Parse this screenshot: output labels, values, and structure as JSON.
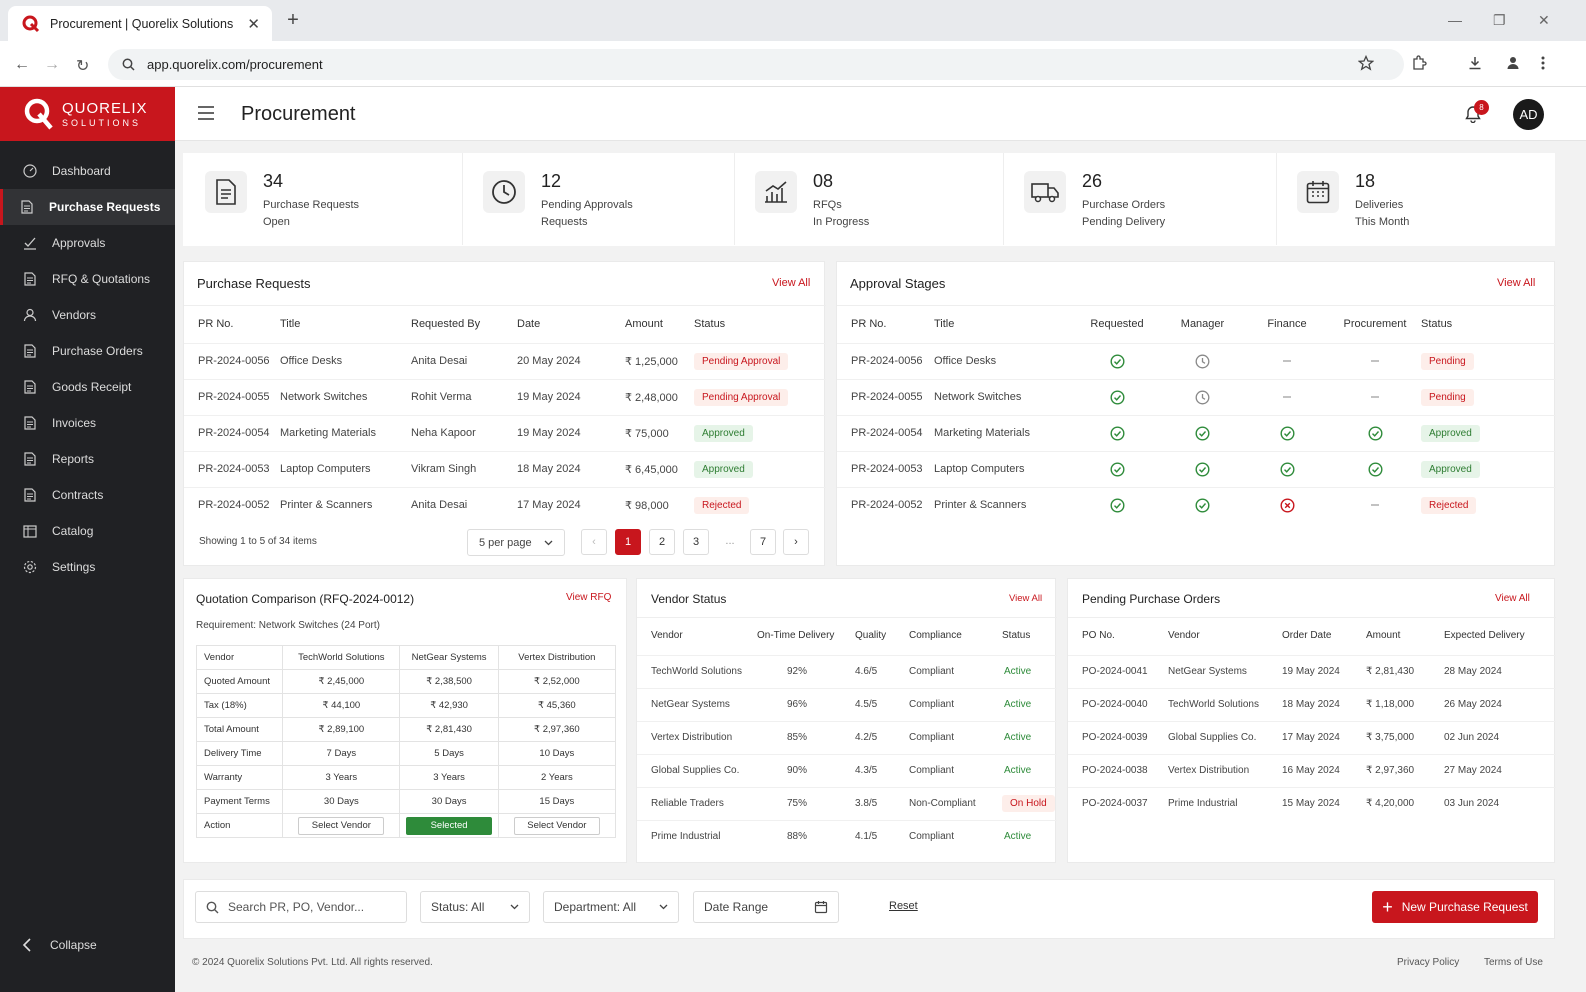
{
  "browser": {
    "tab_title": "Procurement | Quorelix Solutions",
    "url": "app.quorelix.com/procurement"
  },
  "brand": {
    "name": "QUORELIX",
    "sub": "SOLUTIONS",
    "accent": "#c8161d"
  },
  "sidebar": {
    "items": [
      {
        "label": "Dashboard",
        "icon": "dashboard-icon"
      },
      {
        "label": "Purchase Requests",
        "icon": "document-icon"
      },
      {
        "label": "Approvals",
        "icon": "approval-icon"
      },
      {
        "label": "RFQ & Quotations",
        "icon": "document-icon"
      },
      {
        "label": "Vendors",
        "icon": "user-icon"
      },
      {
        "label": "Purchase Orders",
        "icon": "document-icon"
      },
      {
        "label": "Goods Receipt",
        "icon": "document-icon"
      },
      {
        "label": "Invoices",
        "icon": "document-icon"
      },
      {
        "label": "Reports",
        "icon": "document-icon"
      },
      {
        "label": "Contracts",
        "icon": "document-icon"
      },
      {
        "label": "Catalog",
        "icon": "catalog-icon"
      },
      {
        "label": "Settings",
        "icon": "gear-icon"
      }
    ],
    "active": "Purchase Requests",
    "collapse": "Collapse"
  },
  "header": {
    "title": "Procurement",
    "notif_count": "8",
    "avatar": "AD"
  },
  "stats": [
    {
      "num": "34",
      "l1": "Purchase Requests",
      "l2": "Open"
    },
    {
      "num": "12",
      "l1": "Pending Approvals",
      "l2": "Requests"
    },
    {
      "num": "08",
      "l1": "RFQs",
      "l2": "In Progress"
    },
    {
      "num": "26",
      "l1": "Purchase Orders",
      "l2": "Pending Delivery"
    },
    {
      "num": "18",
      "l1": "Deliveries",
      "l2": "This Month"
    }
  ],
  "pr": {
    "title": "Purchase Requests",
    "view_all": "View All",
    "cols": [
      "PR No.",
      "Title",
      "Requested By",
      "Date",
      "Amount",
      "Status"
    ],
    "rows": [
      [
        "PR-2024-0056",
        "Office Desks",
        "Anita Desai",
        "20 May 2024",
        "₹ 1,25,000",
        "Pending Approval"
      ],
      [
        "PR-2024-0055",
        "Network Switches",
        "Rohit Verma",
        "19 May 2024",
        "₹ 2,48,000",
        "Pending Approval"
      ],
      [
        "PR-2024-0054",
        "Marketing Materials",
        "Neha Kapoor",
        "19 May 2024",
        "₹ 75,000",
        "Approved"
      ],
      [
        "PR-2024-0053",
        "Laptop Computers",
        "Vikram Singh",
        "18 May 2024",
        "₹ 6,45,000",
        "Approved"
      ],
      [
        "PR-2024-0052",
        "Printer & Scanners",
        "Anita Desai",
        "17 May 2024",
        "₹ 98,000",
        "Rejected"
      ]
    ],
    "showing": "Showing 1 to 5 of 34 items",
    "per_page": "5 per page",
    "pages": [
      "1",
      "2",
      "3",
      "...",
      "7"
    ]
  },
  "approval": {
    "title": "Approval Stages",
    "view_all": "View All",
    "cols": [
      "PR No.",
      "Title",
      "Requested",
      "Manager",
      "Finance",
      "Procurement",
      "Status"
    ],
    "rows": [
      [
        "PR-2024-0056",
        "Office Desks",
        "done",
        "wait",
        "none",
        "none",
        "Pending"
      ],
      [
        "PR-2024-0055",
        "Network Switches",
        "done",
        "wait",
        "none",
        "none",
        "Pending"
      ],
      [
        "PR-2024-0054",
        "Marketing Materials",
        "done",
        "done",
        "done",
        "done",
        "Approved"
      ],
      [
        "PR-2024-0053",
        "Laptop Computers",
        "done",
        "done",
        "done",
        "done",
        "Approved"
      ],
      [
        "PR-2024-0052",
        "Printer & Scanners",
        "done",
        "done",
        "fail",
        "none",
        "Rejected"
      ]
    ]
  },
  "quotation": {
    "title": "Quotation Comparison (RFQ-2024-0012)",
    "view": "View RFQ",
    "req": "Requirement: Network Switches (24 Port)",
    "cols": [
      "Vendor",
      "TechWorld Solutions",
      "NetGear Systems",
      "Vertex Distribution"
    ],
    "rows": [
      [
        "Quoted Amount",
        "₹ 2,45,000",
        "₹ 2,38,500",
        "₹ 2,52,000"
      ],
      [
        "Tax (18%)",
        "₹ 44,100",
        "₹ 42,930",
        "₹ 45,360"
      ],
      [
        "Total Amount",
        "₹ 2,89,100",
        "₹ 2,81,430",
        "₹ 2,97,360"
      ],
      [
        "Delivery Time",
        "7 Days",
        "5 Days",
        "10 Days"
      ],
      [
        "Warranty",
        "3 Years",
        "3 Years",
        "2 Years"
      ],
      [
        "Payment Terms",
        "30 Days",
        "30 Days",
        "15 Days"
      ]
    ],
    "action": "Action",
    "select": "Select Vendor",
    "selected": "Selected"
  },
  "vendor": {
    "title": "Vendor Status",
    "view_all": "View All",
    "cols": [
      "Vendor",
      "On-Time Delivery",
      "Quality",
      "Compliance",
      "Status"
    ],
    "rows": [
      [
        "TechWorld Solutions",
        "92%",
        "4.6/5",
        "Compliant",
        "Active"
      ],
      [
        "NetGear Systems",
        "96%",
        "4.5/5",
        "Compliant",
        "Active"
      ],
      [
        "Vertex Distribution",
        "85%",
        "4.2/5",
        "Compliant",
        "Active"
      ],
      [
        "Global Supplies Co.",
        "90%",
        "4.3/5",
        "Compliant",
        "Active"
      ],
      [
        "Reliable Traders",
        "75%",
        "3.8/5",
        "Non-Compliant",
        "On Hold"
      ],
      [
        "Prime Industrial",
        "88%",
        "4.1/5",
        "Compliant",
        "Active"
      ]
    ]
  },
  "po": {
    "title": "Pending Purchase Orders",
    "view_all": "View All",
    "cols": [
      "PO No.",
      "Vendor",
      "Order Date",
      "Amount",
      "Expected Delivery"
    ],
    "rows": [
      [
        "PO-2024-0041",
        "NetGear Systems",
        "19 May 2024",
        "₹ 2,81,430",
        "28 May 2024"
      ],
      [
        "PO-2024-0040",
        "TechWorld Solutions",
        "18 May 2024",
        "₹ 1,18,000",
        "26 May 2024"
      ],
      [
        "PO-2024-0039",
        "Global Supplies Co.",
        "17 May 2024",
        "₹ 3,75,000",
        "02 Jun 2024"
      ],
      [
        "PO-2024-0038",
        "Vertex Distribution",
        "16 May 2024",
        "₹ 2,97,360",
        "27 May 2024"
      ],
      [
        "PO-2024-0037",
        "Prime Industrial",
        "15 May 2024",
        "₹ 4,20,000",
        "03 Jun 2024"
      ]
    ]
  },
  "filters": {
    "search_placeholder": "Search PR, PO, Vendor...",
    "status": "Status: All",
    "department": "Department: All",
    "date": "Date Range",
    "reset": "Reset",
    "new_btn": "New Purchase Request"
  },
  "footer": {
    "copy": "© 2024 Quorelix Solutions Pvt. Ltd. All rights reserved.",
    "privacy": "Privacy Policy",
    "terms": "Terms of Use"
  }
}
